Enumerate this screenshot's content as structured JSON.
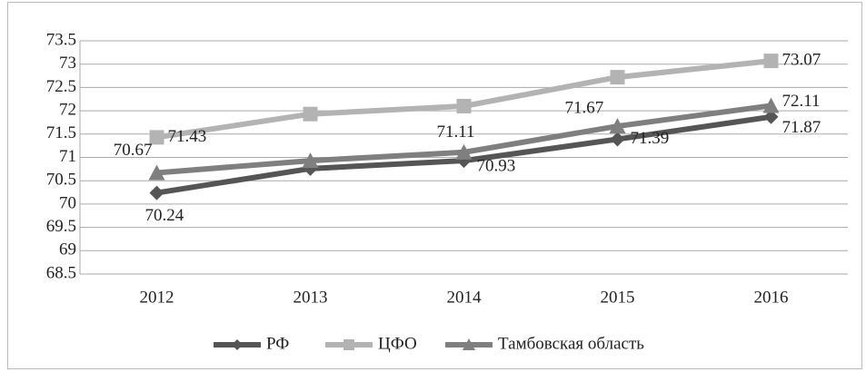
{
  "chart_data": {
    "type": "line",
    "categories": [
      "2012",
      "2013",
      "2014",
      "2015",
      "2016"
    ],
    "series": [
      {
        "name": "РФ",
        "color": "#555555",
        "marker": "diamond",
        "values": [
          70.24,
          70.76,
          70.93,
          71.39,
          71.87
        ],
        "value_labels": [
          "70.24",
          null,
          "70.93",
          "71.39",
          "71.87"
        ]
      },
      {
        "name": "ЦФО",
        "color": "#b3b3b3",
        "marker": "square",
        "values": [
          71.43,
          71.93,
          72.1,
          72.72,
          73.07
        ],
        "value_labels": [
          "71.43",
          null,
          null,
          null,
          "73.07"
        ]
      },
      {
        "name": "Тамбовская область",
        "color": "#7f7f7f",
        "marker": "triangle",
        "values": [
          70.67,
          70.93,
          71.11,
          71.67,
          72.11
        ],
        "value_labels": [
          "70.67",
          null,
          "71.11",
          "71.67",
          "72.11"
        ]
      }
    ],
    "ylim": [
      68.5,
      73.5
    ],
    "yticks": [
      68.5,
      69,
      69.5,
      70,
      70.5,
      71,
      71.5,
      72,
      72.5,
      73,
      73.5
    ],
    "grid": true,
    "legend": "bottom"
  }
}
